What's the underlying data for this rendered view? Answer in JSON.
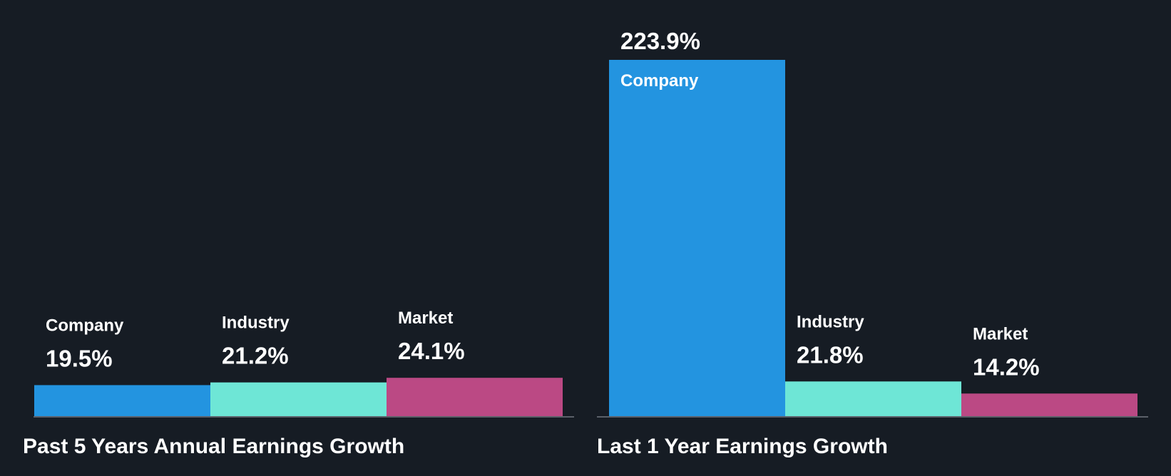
{
  "colors": {
    "background": "#161c24",
    "company": "#2394e0",
    "industry": "#6ee6d6",
    "market": "#bb4984",
    "baseline": "#5b6069",
    "text": "#ffffff"
  },
  "chart_data": [
    {
      "type": "bar",
      "title": "Past 5 Years Annual Earnings Growth",
      "categories": [
        "Company",
        "Industry",
        "Market"
      ],
      "values": [
        19.5,
        21.2,
        24.1
      ],
      "value_labels": [
        "19.5%",
        "21.2%",
        "24.1%"
      ],
      "unit": "%",
      "xlabel": "",
      "ylabel": "",
      "ylim": [
        0,
        223.9
      ],
      "grid": false,
      "legend": "none"
    },
    {
      "type": "bar",
      "title": "Last 1 Year Earnings Growth",
      "categories": [
        "Company",
        "Industry",
        "Market"
      ],
      "values": [
        223.9,
        21.8,
        14.2
      ],
      "value_labels": [
        "223.9%",
        "21.8%",
        "14.2%"
      ],
      "unit": "%",
      "xlabel": "",
      "ylabel": "",
      "ylim": [
        0,
        223.9
      ],
      "grid": false,
      "legend": "none"
    }
  ]
}
